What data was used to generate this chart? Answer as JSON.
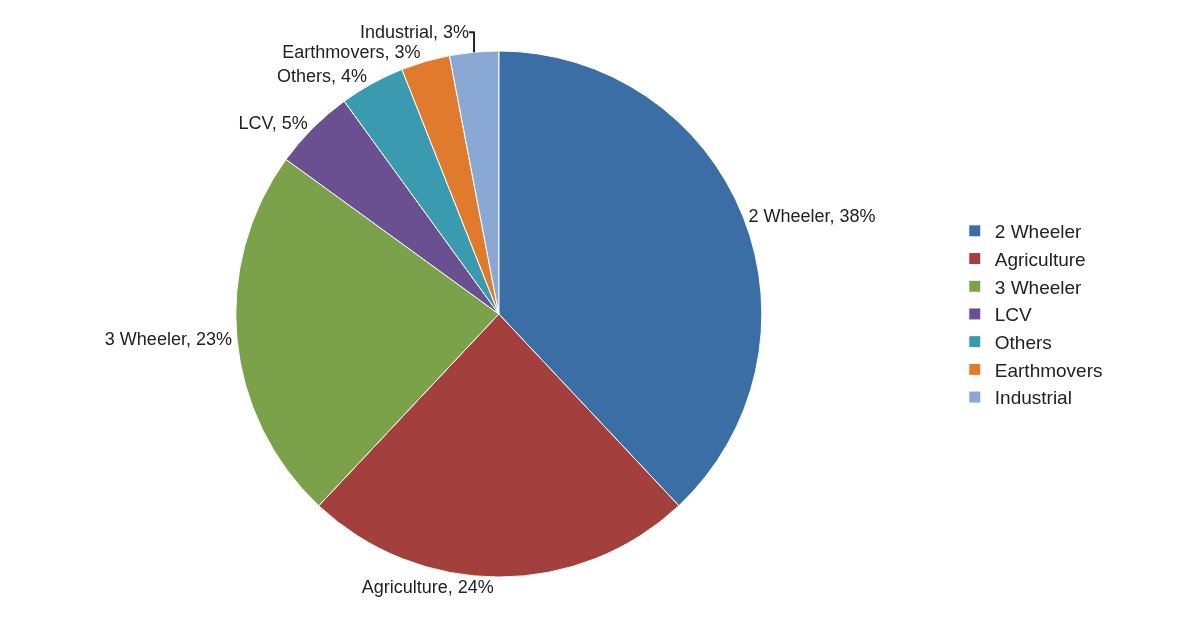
{
  "chart_data": {
    "type": "pie",
    "categories": [
      "2 Wheeler",
      "Agriculture",
      "3 Wheeler",
      "LCV",
      "Others",
      "Earthmovers",
      "Industrial"
    ],
    "values": [
      38,
      24,
      23,
      5,
      4,
      3,
      3
    ],
    "colors": [
      "#3a6ea5",
      "#a33f3c",
      "#7ba14a",
      "#6a4f91",
      "#3a9bb0",
      "#e07b2e",
      "#8aa8d4"
    ],
    "value_labels": [
      "2 Wheeler, 38%",
      "Agriculture, 24%",
      "3 Wheeler, 23%",
      "LCV, 5%",
      "Others, 4%",
      "Earthmovers, 3%",
      "Industrial, 3%"
    ],
    "legend": "right"
  }
}
